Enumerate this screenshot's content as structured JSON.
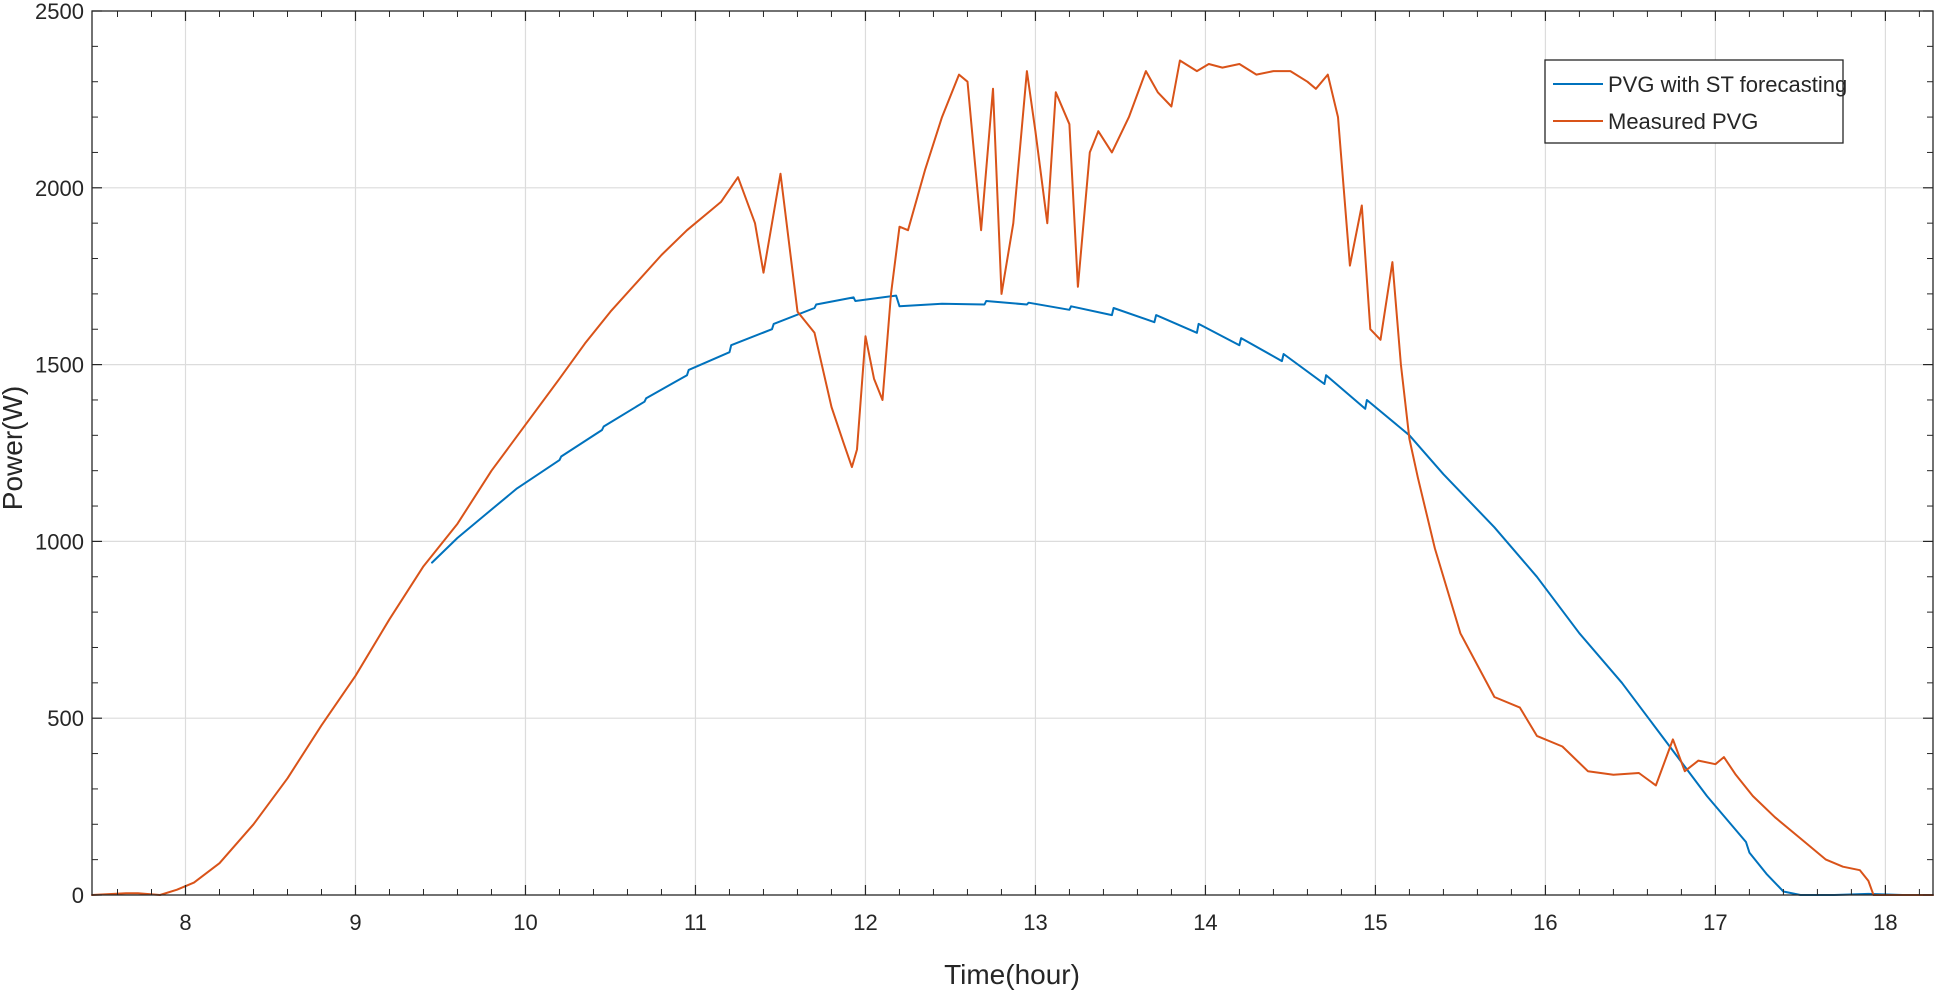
{
  "chart_data": {
    "type": "line",
    "title": "",
    "xlabel": "Time(hour)",
    "ylabel": "Power(W)",
    "xlim": [
      7.45,
      18.28
    ],
    "ylim": [
      0,
      2500
    ],
    "xticks": [
      8,
      9,
      10,
      11,
      12,
      13,
      14,
      15,
      16,
      17,
      18
    ],
    "yticks": [
      0,
      500,
      1000,
      1500,
      2000,
      2500
    ],
    "grid": true,
    "legend_position": "top-right",
    "series": [
      {
        "name": "PVG with ST forecasting",
        "color": "#0072BD",
        "x": [
          9.45,
          9.6,
          9.75,
          9.95,
          10.2,
          10.21,
          10.45,
          10.46,
          10.7,
          10.71,
          10.95,
          10.96,
          11.2,
          11.21,
          11.45,
          11.46,
          11.7,
          11.71,
          11.93,
          11.94,
          12.18,
          12.2,
          12.45,
          12.7,
          12.71,
          12.95,
          12.96,
          13.2,
          13.21,
          13.45,
          13.46,
          13.7,
          13.71,
          13.95,
          13.96,
          14.2,
          14.21,
          14.45,
          14.46,
          14.7,
          14.71,
          14.94,
          14.95,
          15.2,
          15.4,
          15.7,
          15.95,
          16.2,
          16.45,
          16.7,
          16.95,
          17.18,
          17.2,
          17.3,
          17.4,
          17.5,
          17.7,
          17.9,
          18.1,
          18.28
        ],
        "y": [
          940,
          1010,
          1070,
          1150,
          1230,
          1240,
          1315,
          1325,
          1395,
          1405,
          1470,
          1485,
          1535,
          1555,
          1600,
          1615,
          1660,
          1670,
          1690,
          1680,
          1695,
          1665,
          1672,
          1670,
          1680,
          1670,
          1675,
          1655,
          1665,
          1640,
          1660,
          1620,
          1640,
          1590,
          1615,
          1555,
          1575,
          1510,
          1530,
          1445,
          1470,
          1375,
          1400,
          1300,
          1190,
          1040,
          900,
          740,
          600,
          440,
          280,
          150,
          120,
          60,
          10,
          0,
          0,
          3,
          0,
          0
        ]
      },
      {
        "name": "Measured PVG",
        "color": "#D95319",
        "x": [
          7.45,
          7.65,
          7.72,
          7.85,
          7.95,
          8.05,
          8.2,
          8.4,
          8.6,
          8.8,
          9.0,
          9.2,
          9.4,
          9.6,
          9.8,
          10.0,
          10.2,
          10.35,
          10.5,
          10.65,
          10.8,
          10.95,
          11.1,
          11.15,
          11.25,
          11.35,
          11.4,
          11.5,
          11.6,
          11.7,
          11.8,
          11.87,
          11.92,
          11.95,
          12.0,
          12.05,
          12.1,
          12.15,
          12.2,
          12.25,
          12.35,
          12.45,
          12.55,
          12.6,
          12.68,
          12.75,
          12.8,
          12.87,
          12.95,
          13.0,
          13.07,
          13.12,
          13.2,
          13.25,
          13.32,
          13.37,
          13.45,
          13.55,
          13.65,
          13.72,
          13.8,
          13.85,
          13.95,
          14.02,
          14.1,
          14.2,
          14.3,
          14.4,
          14.5,
          14.6,
          14.65,
          14.72,
          14.78,
          14.85,
          14.92,
          14.97,
          15.03,
          15.1,
          15.15,
          15.2,
          15.25,
          15.35,
          15.5,
          15.7,
          15.85,
          15.95,
          16.1,
          16.25,
          16.4,
          16.55,
          16.65,
          16.75,
          16.82,
          16.9,
          17.0,
          17.05,
          17.12,
          17.22,
          17.35,
          17.5,
          17.65,
          17.75,
          17.85,
          17.9,
          17.93,
          18.0,
          18.28
        ],
        "y": [
          0,
          5,
          5,
          0,
          15,
          35,
          90,
          200,
          330,
          480,
          620,
          780,
          930,
          1050,
          1200,
          1330,
          1460,
          1560,
          1650,
          1730,
          1810,
          1880,
          1940,
          1960,
          2030,
          1900,
          1760,
          2040,
          1650,
          1590,
          1380,
          1280,
          1210,
          1260,
          1580,
          1460,
          1400,
          1700,
          1890,
          1880,
          2050,
          2200,
          2320,
          2300,
          1880,
          2280,
          1700,
          1900,
          2330,
          2160,
          1900,
          2270,
          2180,
          1720,
          2100,
          2160,
          2100,
          2200,
          2330,
          2270,
          2230,
          2360,
          2330,
          2350,
          2340,
          2350,
          2320,
          2330,
          2330,
          2300,
          2280,
          2320,
          2200,
          1780,
          1950,
          1600,
          1570,
          1790,
          1500,
          1290,
          1180,
          980,
          740,
          560,
          530,
          450,
          420,
          350,
          340,
          345,
          310,
          440,
          350,
          380,
          370,
          390,
          340,
          280,
          220,
          160,
          100,
          80,
          70,
          40,
          0,
          0,
          0
        ]
      }
    ]
  }
}
